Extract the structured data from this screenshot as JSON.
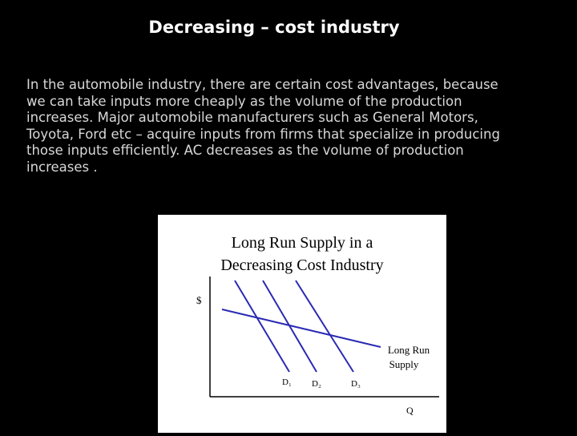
{
  "slide": {
    "title": "Decreasing – cost industry",
    "paragraph_lines": [
      "In the automobile industry, there are certain cost advantages, because",
      "we can take inputs more cheaply as the volume of the production",
      "increases. Major automobile manufacturers such as General Motors,",
      "Toyota, Ford etc – acquire inputs from firms that specialize in producing",
      "those inputs efficiently. AC decreases as the volume of production",
      "increases ."
    ],
    "figure": {
      "title_lines": [
        "Long Run Supply in a",
        "Decreasing Cost Industry"
      ],
      "y_label": "$",
      "x_label": "Q",
      "demand_labels": [
        "D₁",
        "D₂",
        "D₃"
      ],
      "supply_label_lines": [
        "Long  Run",
        "Supply"
      ]
    }
  }
}
